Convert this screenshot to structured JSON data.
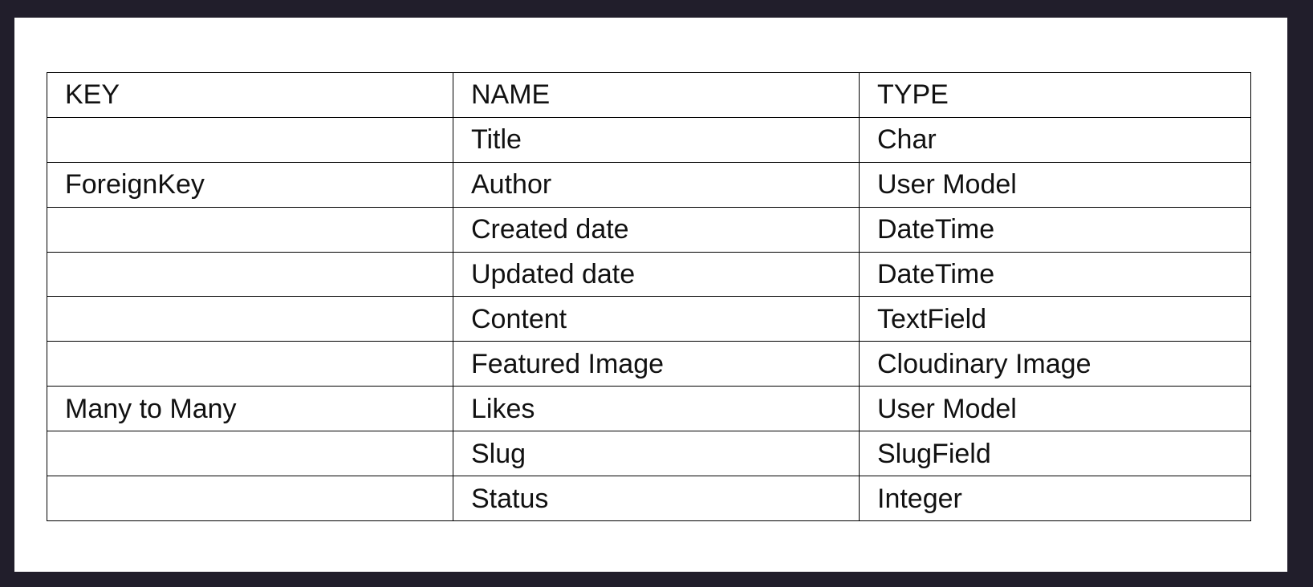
{
  "table": {
    "headers": [
      "KEY",
      "NAME",
      "TYPE"
    ],
    "rows": [
      {
        "key": "",
        "name": "Title",
        "type": "Char"
      },
      {
        "key": "ForeignKey",
        "name": "Author",
        "type": "User Model"
      },
      {
        "key": "",
        "name": "Created date",
        "type": "DateTime"
      },
      {
        "key": "",
        "name": "Updated date",
        "type": "DateTime"
      },
      {
        "key": "",
        "name": "Content",
        "type": "TextField"
      },
      {
        "key": "",
        "name": "Featured Image",
        "type": "Cloudinary Image"
      },
      {
        "key": "Many to Many",
        "name": "Likes",
        "type": "User Model"
      },
      {
        "key": "",
        "name": "Slug",
        "type": "SlugField"
      },
      {
        "key": "",
        "name": "Status",
        "type": "Integer"
      }
    ]
  }
}
